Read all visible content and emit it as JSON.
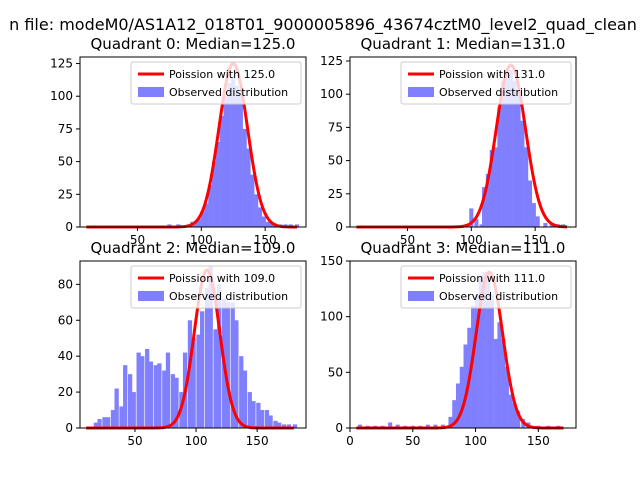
{
  "figure": {
    "suptitle": "n file: modeM0/AS1A12_018T01_9000005896_43674cztM0_level2_quad_clean"
  },
  "chart_data": [
    {
      "type": "histogram+line",
      "title": "Quadrant 0: Median=125.0",
      "median": 125.0,
      "xlim": [
        5,
        182
      ],
      "ylim": [
        0,
        130
      ],
      "xticks": [
        50,
        100,
        150
      ],
      "yticks": [
        0,
        25,
        50,
        75,
        100,
        125
      ],
      "grid": false,
      "legend_position": "upper right",
      "legend": [
        "Poission with 125.0",
        "Observed distribution"
      ],
      "line": {
        "name": "Poission with 125.0",
        "color": "#ff0000",
        "mean": 125.0,
        "peak": 125,
        "x_range": [
          10,
          175
        ]
      },
      "histogram": {
        "name": "Observed distribution",
        "color": "#8080ff",
        "bin_width": 3.2,
        "bins": [
          [
            75,
            2
          ],
          [
            82,
            2
          ],
          [
            90,
            2
          ],
          [
            93,
            4
          ],
          [
            96,
            4
          ],
          [
            98,
            6
          ],
          [
            101,
            12
          ],
          [
            104,
            18
          ],
          [
            107,
            32
          ],
          [
            110,
            50
          ],
          [
            113,
            65
          ],
          [
            116,
            85
          ],
          [
            119,
            100
          ],
          [
            122,
            110
          ],
          [
            125,
            115
          ],
          [
            128,
            108
          ],
          [
            131,
            100
          ],
          [
            134,
            75
          ],
          [
            137,
            60
          ],
          [
            140,
            40
          ],
          [
            143,
            25
          ],
          [
            146,
            15
          ],
          [
            149,
            8
          ],
          [
            152,
            4
          ],
          [
            155,
            3
          ],
          [
            158,
            2
          ],
          [
            162,
            2
          ],
          [
            166,
            2
          ],
          [
            170,
            2
          ],
          [
            175,
            2
          ]
        ]
      }
    },
    {
      "type": "histogram+line",
      "title": "Quadrant 1: Median=131.0",
      "median": 131.0,
      "xlim": [
        5,
        182
      ],
      "ylim": [
        0,
        128
      ],
      "xticks": [
        50,
        100,
        150
      ],
      "yticks": [
        0,
        25,
        50,
        75,
        100,
        125
      ],
      "grid": false,
      "legend_position": "upper right",
      "legend": [
        "Poission with 131.0",
        "Observed distribution"
      ],
      "line": {
        "name": "Poission with 131.0",
        "color": "#ff0000",
        "mean": 131.0,
        "peak": 122,
        "x_range": [
          10,
          175
        ]
      },
      "histogram": {
        "name": "Observed distribution",
        "color": "#8080ff",
        "bin_width": 3.2,
        "bins": [
          [
            100,
            14
          ],
          [
            104,
            6
          ],
          [
            108,
            2
          ],
          [
            110,
            30
          ],
          [
            113,
            40
          ],
          [
            116,
            58
          ],
          [
            119,
            60
          ],
          [
            122,
            90
          ],
          [
            125,
            110
          ],
          [
            128,
            115
          ],
          [
            131,
            118
          ],
          [
            134,
            110
          ],
          [
            137,
            100
          ],
          [
            140,
            80
          ],
          [
            143,
            60
          ],
          [
            146,
            35
          ],
          [
            149,
            18
          ],
          [
            152,
            8
          ],
          [
            158,
            3
          ],
          [
            163,
            2
          ],
          [
            168,
            2
          ],
          [
            172,
            2
          ]
        ]
      }
    },
    {
      "type": "histogram+line",
      "title": "Quadrant 2: Median=109.0",
      "median": 109.0,
      "xlim": [
        5,
        190
      ],
      "ylim": [
        0,
        93
      ],
      "xticks": [
        50,
        100,
        150
      ],
      "yticks": [
        0,
        20,
        40,
        60,
        80
      ],
      "grid": false,
      "legend_position": "upper right",
      "legend": [
        "Poission with 109.0",
        "Observed distribution"
      ],
      "line": {
        "name": "Poission with 109.0",
        "color": "#ff0000",
        "mean": 109.0,
        "peak": 88,
        "x_range": [
          10,
          180
        ]
      },
      "histogram": {
        "name": "Observed distribution",
        "color": "#8080ff",
        "bin_width": 3.5,
        "bins": [
          [
            18,
            3
          ],
          [
            21,
            5
          ],
          [
            25,
            6
          ],
          [
            28,
            6
          ],
          [
            32,
            10
          ],
          [
            35,
            22
          ],
          [
            39,
            12
          ],
          [
            42,
            35
          ],
          [
            46,
            30
          ],
          [
            49,
            20
          ],
          [
            53,
            42
          ],
          [
            56,
            40
          ],
          [
            60,
            44
          ],
          [
            63,
            37
          ],
          [
            67,
            35
          ],
          [
            70,
            36
          ],
          [
            74,
            32
          ],
          [
            77,
            42
          ],
          [
            81,
            30
          ],
          [
            84,
            28
          ],
          [
            88,
            20
          ],
          [
            91,
            42
          ],
          [
            95,
            60
          ],
          [
            98,
            50
          ],
          [
            102,
            52
          ],
          [
            105,
            65
          ],
          [
            109,
            78
          ],
          [
            112,
            90
          ],
          [
            116,
            55
          ],
          [
            119,
            80
          ],
          [
            123,
            72
          ],
          [
            126,
            70
          ],
          [
            130,
            70
          ],
          [
            133,
            60
          ],
          [
            137,
            40
          ],
          [
            140,
            32
          ],
          [
            144,
            20
          ],
          [
            147,
            15
          ],
          [
            151,
            14
          ],
          [
            154,
            10
          ],
          [
            158,
            10
          ],
          [
            161,
            7
          ],
          [
            165,
            4
          ],
          [
            168,
            3
          ],
          [
            172,
            2
          ],
          [
            176,
            2
          ],
          [
            181,
            2
          ]
        ]
      }
    },
    {
      "type": "histogram+line",
      "title": "Quadrant 3: Median=111.0",
      "median": 111.0,
      "xlim": [
        0,
        180
      ],
      "ylim": [
        0,
        150
      ],
      "xticks": [
        0,
        50,
        100,
        150
      ],
      "yticks": [
        0,
        50,
        100,
        150
      ],
      "grid": false,
      "legend_position": "upper right",
      "legend": [
        "Poission with 111.0",
        "Observed distribution"
      ],
      "line": {
        "name": "Poission with 111.0",
        "color": "#ff0000",
        "mean": 111.0,
        "peak": 140,
        "x_range": [
          5,
          170
        ]
      },
      "histogram": {
        "name": "Observed distribution",
        "color": "#8080ff",
        "bin_width": 3.2,
        "bins": [
          [
            8,
            3
          ],
          [
            14,
            2
          ],
          [
            20,
            2
          ],
          [
            26,
            2
          ],
          [
            32,
            5
          ],
          [
            38,
            3
          ],
          [
            44,
            2
          ],
          [
            50,
            2
          ],
          [
            56,
            2
          ],
          [
            62,
            3
          ],
          [
            68,
            3
          ],
          [
            74,
            3
          ],
          [
            80,
            10
          ],
          [
            83,
            25
          ],
          [
            86,
            40
          ],
          [
            89,
            55
          ],
          [
            92,
            75
          ],
          [
            95,
            90
          ],
          [
            98,
            110
          ],
          [
            101,
            120
          ],
          [
            104,
            135
          ],
          [
            107,
            140
          ],
          [
            110,
            140
          ],
          [
            113,
            120
          ],
          [
            116,
            80
          ],
          [
            119,
            95
          ],
          [
            122,
            80
          ],
          [
            125,
            55
          ],
          [
            128,
            30
          ],
          [
            131,
            22
          ],
          [
            134,
            15
          ],
          [
            138,
            8
          ],
          [
            142,
            5
          ],
          [
            150,
            2
          ],
          [
            158,
            2
          ],
          [
            166,
            2
          ]
        ]
      }
    }
  ]
}
